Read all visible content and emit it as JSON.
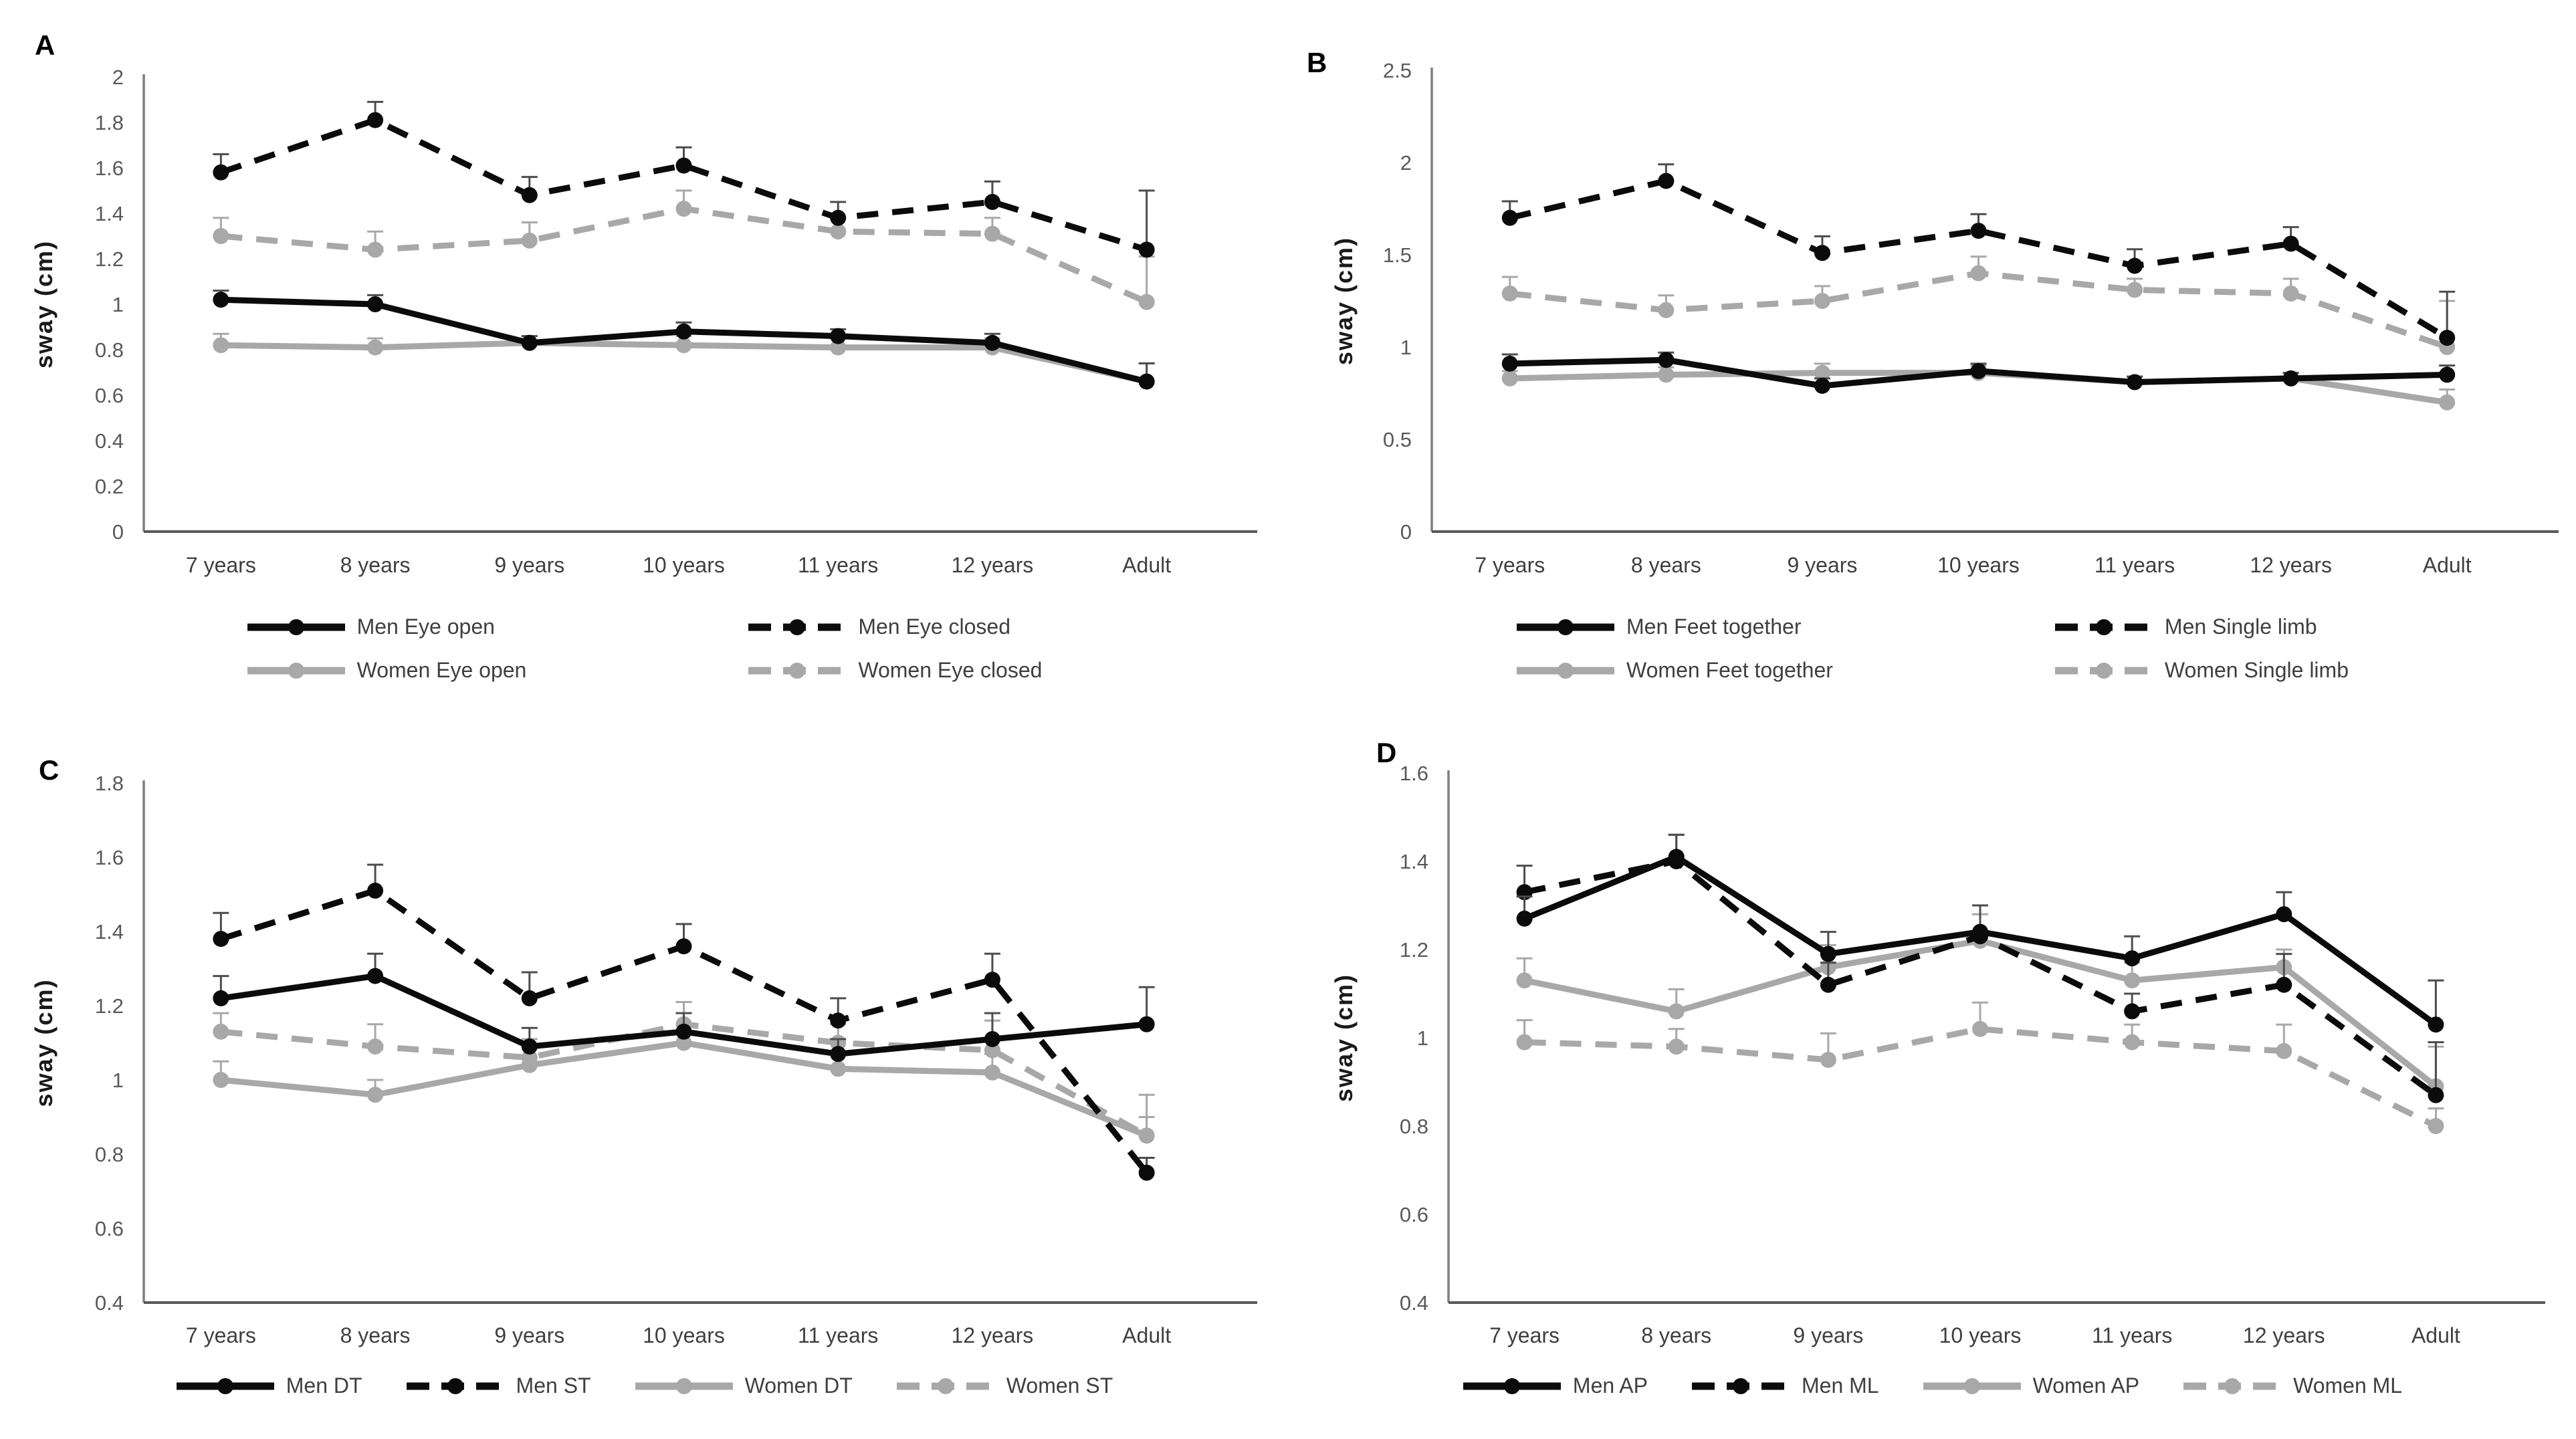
{
  "colors": {
    "black": "#0b0b0b",
    "gray": "#a8a8a8",
    "axis_y": "#7f7f7f",
    "axis_x": "#595959",
    "tick_text": "#595959",
    "label_text": "#3f3f3f",
    "error_black": "#4d4d4d",
    "error_gray": "#a8a8a8"
  },
  "chart_data": [
    {
      "panel_label": "A",
      "type": "line",
      "title": "",
      "xlabel": "",
      "ylabel": "sway (cm)",
      "ylim": [
        0,
        2
      ],
      "grid": false,
      "legend_position": "bottom",
      "legend_columns": 2,
      "yticks": {
        "values": [
          0,
          0.2,
          0.4,
          0.6,
          0.8,
          1,
          1.2,
          1.4,
          1.6,
          1.8,
          2
        ],
        "labels": [
          "0",
          "0.2",
          "0.4",
          "0.6",
          "0.8",
          "1",
          "1.2",
          "1.4",
          "1.6",
          "1.8",
          "2"
        ]
      },
      "categories": [
        "7 years",
        "8 years",
        "9 years",
        "10 years",
        "11 years",
        "12 years",
        "Adult"
      ],
      "series": [
        {
          "name": "Men Eye open",
          "color": "black",
          "dashed": false,
          "values": [
            1.02,
            1.0,
            0.83,
            0.88,
            0.86,
            0.83,
            0.66
          ],
          "errors_up": [
            0.04,
            0.04,
            0.03,
            0.04,
            0.03,
            0.04,
            0.08
          ]
        },
        {
          "name": "Men Eye closed",
          "color": "black",
          "dashed": true,
          "values": [
            1.58,
            1.81,
            1.48,
            1.61,
            1.38,
            1.45,
            1.24
          ],
          "errors_up": [
            0.08,
            0.08,
            0.08,
            0.08,
            0.07,
            0.09,
            0.26
          ]
        },
        {
          "name": "Women Eye open",
          "color": "gray",
          "dashed": false,
          "values": [
            0.82,
            0.81,
            0.83,
            0.82,
            0.81,
            0.81,
            0.66
          ],
          "errors_up": [
            0.05,
            0.04,
            0.03,
            0.04,
            0.04,
            0.04,
            0.08
          ]
        },
        {
          "name": "Women Eye closed",
          "color": "gray",
          "dashed": true,
          "values": [
            1.3,
            1.24,
            1.28,
            1.42,
            1.32,
            1.31,
            1.01
          ],
          "errors_up": [
            0.08,
            0.08,
            0.08,
            0.08,
            0.06,
            0.07,
            0.2
          ]
        }
      ]
    },
    {
      "panel_label": "B",
      "type": "line",
      "title": "",
      "xlabel": "",
      "ylabel": "sway (cm)",
      "ylim": [
        0,
        2.5
      ],
      "grid": false,
      "legend_position": "bottom",
      "legend_columns": 2,
      "yticks": {
        "values": [
          0,
          0.5,
          1,
          1.5,
          2,
          2.5
        ],
        "labels": [
          "0",
          "0.5",
          "1",
          "1.5",
          "2",
          "2.5"
        ]
      },
      "categories": [
        "7 years",
        "8 years",
        "9 years",
        "10 years",
        "11 years",
        "12 years",
        "Adult"
      ],
      "series": [
        {
          "name": "Men Feet together",
          "color": "black",
          "dashed": false,
          "values": [
            0.91,
            0.93,
            0.79,
            0.87,
            0.81,
            0.83,
            0.85
          ],
          "errors_up": [
            0.05,
            0.04,
            0.04,
            0.04,
            0.03,
            0.03,
            0.05
          ]
        },
        {
          "name": "Men Single limb",
          "color": "black",
          "dashed": true,
          "values": [
            1.7,
            1.9,
            1.51,
            1.63,
            1.44,
            1.56,
            1.05
          ],
          "errors_up": [
            0.09,
            0.09,
            0.09,
            0.09,
            0.09,
            0.09,
            0.25
          ]
        },
        {
          "name": "Women Feet together",
          "color": "gray",
          "dashed": false,
          "values": [
            0.83,
            0.85,
            0.86,
            0.86,
            0.81,
            0.83,
            0.7
          ],
          "errors_up": [
            0.04,
            0.04,
            0.05,
            0.04,
            0.03,
            0.03,
            0.07
          ]
        },
        {
          "name": "Women Single limb",
          "color": "gray",
          "dashed": true,
          "values": [
            1.29,
            1.2,
            1.25,
            1.4,
            1.31,
            1.29,
            1.0
          ],
          "errors_up": [
            0.09,
            0.08,
            0.08,
            0.09,
            0.06,
            0.08,
            0.25
          ]
        }
      ]
    },
    {
      "panel_label": "C",
      "type": "line",
      "title": "",
      "xlabel": "",
      "ylabel": "sway (cm)",
      "ylim": [
        0.4,
        1.8
      ],
      "grid": false,
      "legend_position": "bottom",
      "legend_columns": 4,
      "yticks": {
        "values": [
          0.4,
          0.6,
          0.8,
          1,
          1.2,
          1.4,
          1.6,
          1.8
        ],
        "labels": [
          "0.4",
          "0.6",
          "0.8",
          "1",
          "1.2",
          "1.4",
          "1.6",
          "1.8"
        ]
      },
      "categories": [
        "7 years",
        "8 years",
        "9 years",
        "10 years",
        "11 years",
        "12 years",
        "Adult"
      ],
      "series": [
        {
          "name": "Men DT",
          "color": "black",
          "dashed": false,
          "values": [
            1.22,
            1.28,
            1.09,
            1.13,
            1.07,
            1.11,
            1.15
          ],
          "errors_up": [
            0.06,
            0.06,
            0.05,
            0.05,
            0.04,
            0.07,
            0.1
          ]
        },
        {
          "name": "Men ST",
          "color": "black",
          "dashed": true,
          "values": [
            1.38,
            1.51,
            1.22,
            1.36,
            1.16,
            1.27,
            0.75
          ],
          "errors_up": [
            0.07,
            0.07,
            0.07,
            0.06,
            0.06,
            0.07,
            0.04
          ]
        },
        {
          "name": "Women DT",
          "color": "gray",
          "dashed": false,
          "values": [
            1.0,
            0.96,
            1.04,
            1.1,
            1.03,
            1.02,
            0.85
          ],
          "errors_up": [
            0.05,
            0.04,
            0.05,
            0.05,
            0.04,
            0.05,
            0.05
          ]
        },
        {
          "name": "Women ST",
          "color": "gray",
          "dashed": true,
          "values": [
            1.13,
            1.09,
            1.06,
            1.15,
            1.1,
            1.08,
            0.85
          ],
          "errors_up": [
            0.05,
            0.06,
            0.05,
            0.06,
            0.05,
            0.08,
            0.11
          ]
        }
      ]
    },
    {
      "panel_label": "D",
      "type": "line",
      "title": "",
      "xlabel": "",
      "ylabel": "sway (cm)",
      "ylim": [
        0.4,
        1.6
      ],
      "grid": false,
      "legend_position": "bottom",
      "legend_columns": 4,
      "yticks": {
        "values": [
          0.4,
          0.6,
          0.8,
          1,
          1.2,
          1.4,
          1.6
        ],
        "labels": [
          "0.4",
          "0.6",
          "0.8",
          "1",
          "1.2",
          "1.4",
          "1.6"
        ]
      },
      "categories": [
        "7 years",
        "8 years",
        "9 years",
        "10 years",
        "11 years",
        "12 years",
        "Adult"
      ],
      "series": [
        {
          "name": "Men AP",
          "color": "black",
          "dashed": false,
          "values": [
            1.27,
            1.41,
            1.19,
            1.24,
            1.18,
            1.28,
            1.03
          ],
          "errors_up": [
            0.05,
            0.05,
            0.05,
            0.06,
            0.05,
            0.05,
            0.1
          ]
        },
        {
          "name": "Men ML",
          "color": "black",
          "dashed": true,
          "values": [
            1.33,
            1.4,
            1.12,
            1.23,
            1.06,
            1.12,
            0.87
          ],
          "errors_up": [
            0.06,
            0.06,
            0.05,
            0.07,
            0.04,
            0.07,
            0.12
          ]
        },
        {
          "name": "Women AP",
          "color": "gray",
          "dashed": false,
          "values": [
            1.13,
            1.06,
            1.16,
            1.22,
            1.13,
            1.16,
            0.89
          ],
          "errors_up": [
            0.05,
            0.05,
            0.05,
            0.06,
            0.04,
            0.04,
            0.09
          ]
        },
        {
          "name": "Women ML",
          "color": "gray",
          "dashed": true,
          "values": [
            0.99,
            0.98,
            0.95,
            1.02,
            0.99,
            0.97,
            0.8
          ],
          "errors_up": [
            0.05,
            0.04,
            0.06,
            0.06,
            0.04,
            0.06,
            0.04
          ]
        }
      ]
    }
  ]
}
